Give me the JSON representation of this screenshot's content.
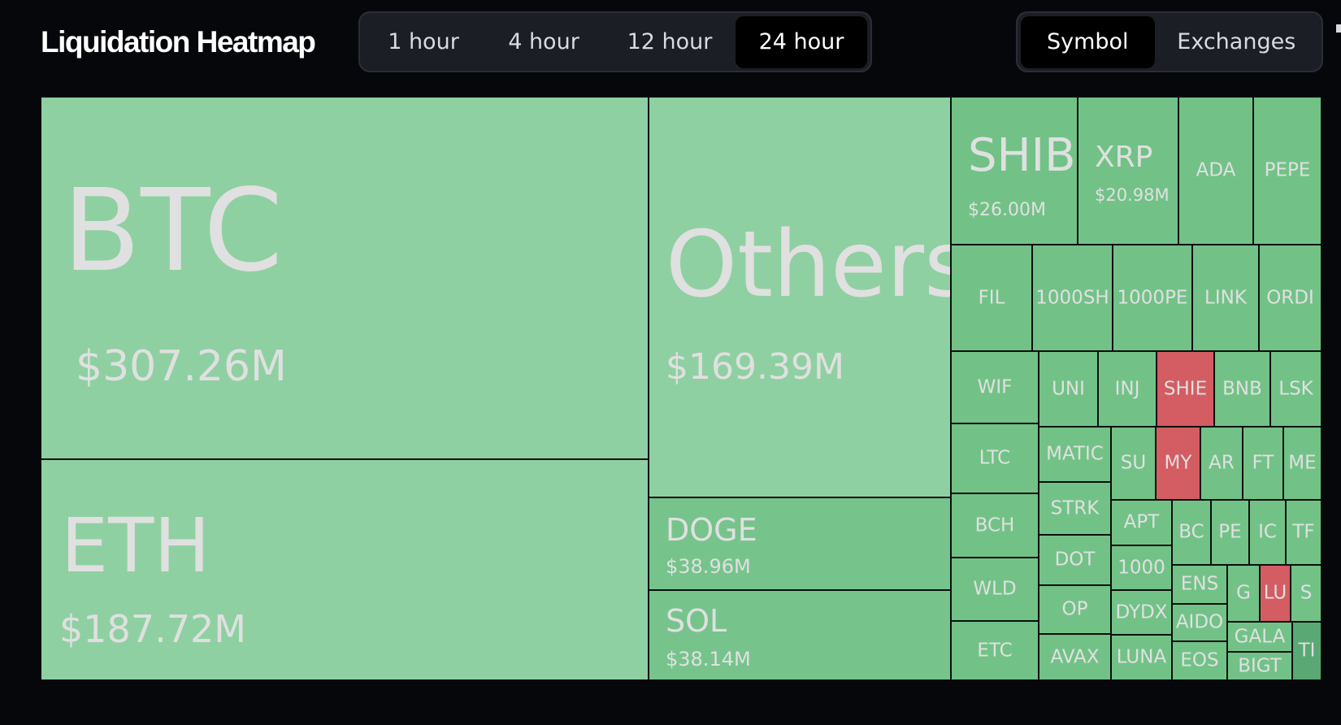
{
  "header": {
    "title": "Liquidation Heatmap",
    "time_ranges": [
      "1 hour",
      "4 hour",
      "12 hour",
      "24 hour"
    ],
    "active_time_range": "24 hour",
    "views": [
      "Symbol",
      "Exchanges"
    ],
    "active_view": "Symbol"
  },
  "colors": {
    "large": "#8fd0a2",
    "medium": "#76c48c",
    "small": "#72c287",
    "short_heavy": "#d35d62",
    "dark_edge": "#5aa874"
  },
  "tiles": [
    {
      "symbol": "BTC",
      "value": "$307.26M"
    },
    {
      "symbol": "ETH",
      "value": "$187.72M"
    },
    {
      "symbol": "Others",
      "value": "$169.39M"
    },
    {
      "symbol": "DOGE",
      "value": "$38.96M"
    },
    {
      "symbol": "SOL",
      "value": "$38.14M"
    },
    {
      "symbol": "SHIB",
      "value": "$26.00M"
    },
    {
      "symbol": "XRP",
      "value": "$20.98M"
    },
    {
      "symbol": "ADA"
    },
    {
      "symbol": "PEPE"
    },
    {
      "symbol": "FIL"
    },
    {
      "symbol": "1000SH"
    },
    {
      "symbol": "1000PE"
    },
    {
      "symbol": "LINK"
    },
    {
      "symbol": "ORDI"
    },
    {
      "symbol": "WIF"
    },
    {
      "symbol": "UNI"
    },
    {
      "symbol": "INJ"
    },
    {
      "symbol": "SHIE"
    },
    {
      "symbol": "BNB"
    },
    {
      "symbol": "LSK"
    },
    {
      "symbol": "LTC"
    },
    {
      "symbol": "MATIC"
    },
    {
      "symbol": "SU"
    },
    {
      "symbol": "MY"
    },
    {
      "symbol": "AR"
    },
    {
      "symbol": "FT"
    },
    {
      "symbol": "ME"
    },
    {
      "symbol": "BCH"
    },
    {
      "symbol": "STRK"
    },
    {
      "symbol": "APT"
    },
    {
      "symbol": "BC"
    },
    {
      "symbol": "PE"
    },
    {
      "symbol": "IC"
    },
    {
      "symbol": "TF"
    },
    {
      "symbol": "DOT"
    },
    {
      "symbol": "1000"
    },
    {
      "symbol": "WLD"
    },
    {
      "symbol": "ENS"
    },
    {
      "symbol": "G"
    },
    {
      "symbol": "LU"
    },
    {
      "symbol": "S"
    },
    {
      "symbol": "OP"
    },
    {
      "symbol": "DYDX"
    },
    {
      "symbol": "AIDO"
    },
    {
      "symbol": "GALA"
    },
    {
      "symbol": "ETC"
    },
    {
      "symbol": "AVAX"
    },
    {
      "symbol": "LUNA"
    },
    {
      "symbol": "EOS"
    },
    {
      "symbol": "BIGT"
    },
    {
      "symbol": "TI"
    }
  ]
}
